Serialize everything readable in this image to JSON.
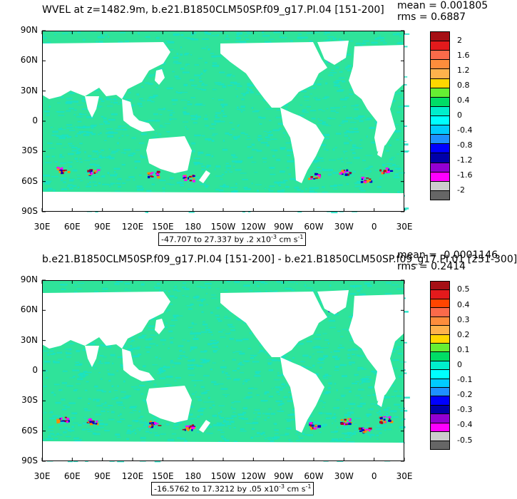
{
  "colors": {
    "ocean_base": "#2fe39a",
    "ocean_alt": "#19e3c5",
    "land": "#ffffff",
    "hot": [
      "#b3001b",
      "#ff2a2a",
      "#ff8c00",
      "#ffd700"
    ],
    "cold": [
      "#1e50ff",
      "#0000cc",
      "#9400d3",
      "#ff00ff"
    ]
  },
  "x_tick_labels": [
    "30E",
    "60E",
    "90E",
    "120E",
    "150E",
    "180",
    "150W",
    "120W",
    "90W",
    "60W",
    "30W",
    "0",
    "30E"
  ],
  "y_tick_labels": [
    "90N",
    "60N",
    "30N",
    "0",
    "30S",
    "60S",
    "90S"
  ],
  "panels": [
    {
      "title": "WVEL at z=1482.9m, b.e21.B1850CLM50SP.f09_g17.PI.04 [151-200]",
      "mean_text": "mean = 0.001805",
      "rms_text": "rms = 0.6887",
      "range_prefix": "-47.707 to 27.337 by .2 x10",
      "range_exp": "-3",
      "range_units": "cm s",
      "range_units_exp": "-1",
      "colorbar": {
        "labels": [
          "2",
          "1.6",
          "1.2",
          "0.8",
          "0.4",
          "0",
          "-0.4",
          "-0.8",
          "-1.2",
          "-1.6",
          "-2"
        ],
        "colors": [
          "#a50f15",
          "#e31a1c",
          "#fb6a4a",
          "#fd8d3c",
          "#feb24c",
          "#ffd700",
          "#66ee33",
          "#00dd66",
          "#00eecc",
          "#00ffff",
          "#00ccff",
          "#1e90ff",
          "#0000ff",
          "#0000aa",
          "#9400d3",
          "#ff00ff",
          "#cccccc",
          "#666666"
        ]
      }
    },
    {
      "title": "b.e21.B1850CLM50SP.f09_g17.PI.04 [151-200] - b.e21.B1850CLM50SP.f09_g17.PI.01 [251-300]",
      "mean_text": "mean = -0.0001146",
      "rms_text": "rms = 0.2414",
      "range_prefix": "-16.5762 to 17.3212 by .05 x10",
      "range_exp": "-3",
      "range_units": "cm s",
      "range_units_exp": "-1",
      "colorbar": {
        "labels": [
          "0.5",
          "0.4",
          "0.3",
          "0.2",
          "0.1",
          "0",
          "-0.1",
          "-0.2",
          "-0.3",
          "-0.4",
          "-0.5"
        ],
        "colors": [
          "#a50f15",
          "#e31a1c",
          "#ff4500",
          "#fb6a4a",
          "#fd8d3c",
          "#feb24c",
          "#ffd700",
          "#66ee33",
          "#00dd66",
          "#00eecc",
          "#00ffff",
          "#00ccff",
          "#1e90ff",
          "#0000ff",
          "#0000aa",
          "#9400d3",
          "#ff00ff",
          "#cccccc",
          "#666666"
        ]
      }
    }
  ]
}
